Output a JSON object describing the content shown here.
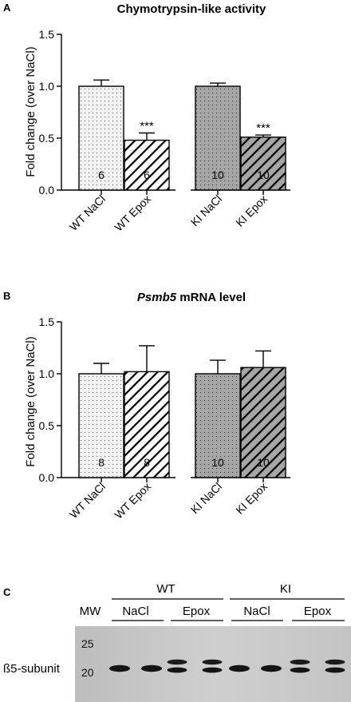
{
  "colors": {
    "wt_fill": "#f2f2f2",
    "ki_fill": "#a6a6a6",
    "axis": "#000000",
    "blot_bg": "#c9c9c9",
    "band": "#1a1a1a"
  },
  "panels": {
    "A": "A",
    "B": "B",
    "C": "C"
  },
  "chart_data": [
    {
      "type": "bar",
      "title": "Chymotrypsin-like activity",
      "ylabel": "Fold change (over NaCl)",
      "xlabel": "",
      "ylim": [
        0,
        1.5
      ],
      "yticks": [
        "0.0",
        "0.5",
        "1.0",
        "1.5"
      ],
      "categories": [
        "WT NaCl",
        "WT Epox",
        "KI NaCl",
        "KI Epox"
      ],
      "values": [
        1.0,
        0.48,
        1.0,
        0.51
      ],
      "errors": [
        0.06,
        0.07,
        0.03,
        0.02
      ],
      "n_labels": [
        "6",
        "6",
        "10",
        "10"
      ],
      "significance": [
        "",
        "***",
        "",
        "***"
      ],
      "patterns": [
        "dots-light",
        "hatch-light",
        "dots-dark",
        "hatch-dark"
      ]
    },
    {
      "type": "bar",
      "title_italic": "Psmb5",
      "title_rest": " mRNA level",
      "ylabel": "Fold change (over NaCl)",
      "xlabel": "",
      "ylim": [
        0,
        1.5
      ],
      "yticks": [
        "0.0",
        "0.5",
        "1.0",
        "1.5"
      ],
      "categories": [
        "WT NaCl",
        "WT Epox",
        "KI NaCl",
        "KI Epox"
      ],
      "values": [
        1.0,
        1.02,
        1.0,
        1.06
      ],
      "errors": [
        0.1,
        0.25,
        0.13,
        0.16
      ],
      "n_labels": [
        "8",
        "8",
        "10",
        "10"
      ],
      "significance": [
        "",
        "",
        "",
        ""
      ],
      "patterns": [
        "dots-light",
        "hatch-light",
        "dots-dark",
        "hatch-dark"
      ]
    }
  ],
  "blot": {
    "mw_label": "MW",
    "groups": [
      "WT",
      "KI"
    ],
    "conditions": [
      "NaCl",
      "Epox",
      "NaCl",
      "Epox"
    ],
    "row_label": "ß5-subunit",
    "markers": [
      "25",
      "20"
    ],
    "lanes": [
      "single",
      "single",
      "double",
      "double",
      "single",
      "single",
      "double",
      "double"
    ]
  }
}
